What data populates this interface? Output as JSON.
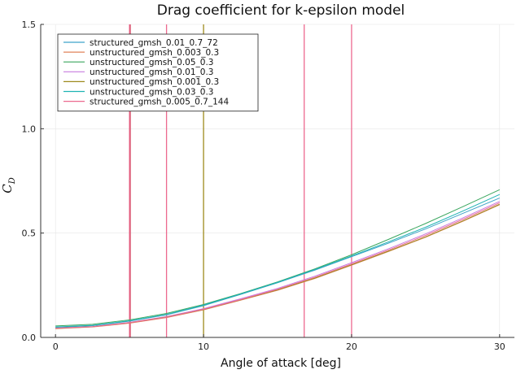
{
  "chart_data": {
    "type": "line",
    "title": "Drag coefficient for k-epsilon model",
    "xlabel": "Angle of attack [deg]",
    "ylabel_main": "C",
    "ylabel_sub": "D",
    "xlim": [
      -1,
      31
    ],
    "ylim": [
      0,
      1.5
    ],
    "xticks": [
      0,
      10,
      20,
      30
    ],
    "yticks": [
      0.0,
      0.5,
      1.0,
      1.5
    ],
    "ytick_labels": [
      "0.0",
      "0.5",
      "1.0",
      "1.5"
    ],
    "grid": true,
    "legend_position": "top-left",
    "series": [
      {
        "name": "structured_gmsh_0.01_0.7_72",
        "color": "#3fa3c9",
        "x": [
          0,
          2.5,
          5,
          7.5,
          10,
          12.5,
          15,
          17.5,
          20,
          22.5,
          25,
          27.5,
          30
        ],
        "y": [
          0.048,
          0.056,
          0.078,
          0.108,
          0.152,
          0.206,
          0.262,
          0.322,
          0.387,
          0.452,
          0.52,
          0.594,
          0.668
        ]
      },
      {
        "name": "unstructured_gmsh_0.003_0.3",
        "color": "#e0835a",
        "x": [
          0,
          2.5,
          5,
          7.5,
          10,
          12.5,
          15,
          17.5,
          20,
          22.5,
          25,
          27.5,
          30
        ],
        "y": [
          0.042,
          0.05,
          0.068,
          0.095,
          0.132,
          0.178,
          0.226,
          0.282,
          0.346,
          0.412,
          0.48,
          0.556,
          0.636
        ]
      },
      {
        "name": "unstructured_gmsh_0.05_0.3",
        "color": "#3aa65e",
        "x": [
          0,
          2.5,
          5,
          7.5,
          10,
          12.5,
          15,
          17.5,
          20,
          22.5,
          25,
          27.5,
          30
        ],
        "y": [
          0.055,
          0.063,
          0.084,
          0.115,
          0.158,
          0.21,
          0.266,
          0.328,
          0.396,
          0.47,
          0.546,
          0.626,
          0.708
        ]
      },
      {
        "name": "unstructured_gmsh_0.01_0.3",
        "color": "#c77bdf",
        "x": [
          0,
          2.5,
          5,
          7.5,
          10,
          12.5,
          15,
          17.5,
          20,
          22.5,
          25,
          27.5,
          30
        ],
        "y": [
          0.045,
          0.052,
          0.072,
          0.1,
          0.138,
          0.185,
          0.235,
          0.293,
          0.358,
          0.425,
          0.496,
          0.572,
          0.652
        ]
      },
      {
        "name": "unstructured_gmsh_0.001_0.3",
        "color": "#9e8a1c",
        "x": [
          0,
          2.5,
          5,
          7.5,
          10,
          12.5,
          15,
          17.5,
          20,
          22.5,
          25,
          27.5,
          30
        ],
        "y": [
          0.043,
          0.051,
          0.07,
          0.098,
          0.134,
          0.18,
          0.228,
          0.284,
          0.348,
          0.414,
          0.482,
          0.558,
          0.638
        ]
      },
      {
        "name": "unstructured_gmsh_0.03_0.3",
        "color": "#1fb3b3",
        "x": [
          0,
          2.5,
          5,
          7.5,
          10,
          12.5,
          15,
          17.5,
          20,
          22.5,
          25,
          27.5,
          30
        ],
        "y": [
          0.05,
          0.058,
          0.08,
          0.11,
          0.155,
          0.208,
          0.264,
          0.325,
          0.39,
          0.458,
          0.528,
          0.605,
          0.685
        ]
      },
      {
        "name": "structured_gmsh_0.005_0.7_144",
        "color": "#ec6a8f",
        "x": [
          0,
          2.5,
          5,
          7.5,
          10,
          12.5,
          15,
          17.5,
          20,
          22.5,
          25,
          27.5,
          30
        ],
        "y": [
          0.044,
          0.051,
          0.07,
          0.097,
          0.135,
          0.181,
          0.231,
          0.288,
          0.352,
          0.419,
          0.489,
          0.565,
          0.645
        ]
      }
    ],
    "vertical_lines": [
      {
        "x": 5.0,
        "color": "#ec6a8f"
      },
      {
        "x": 5.05,
        "color": "#d8546e"
      },
      {
        "x": 7.5,
        "color": "#ec6a8f"
      },
      {
        "x": 10.0,
        "color": "#9e8a1c"
      },
      {
        "x": 16.8,
        "color": "#ec6a8f"
      },
      {
        "x": 20.0,
        "color": "#ec6a8f"
      }
    ]
  }
}
